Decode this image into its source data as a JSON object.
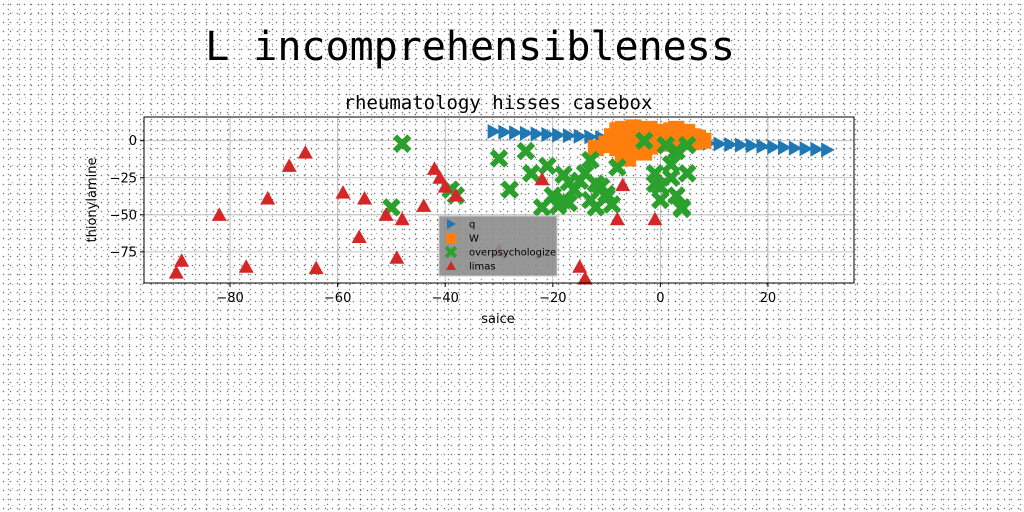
{
  "figure_title": "L incomprehensibleness",
  "chart_data": {
    "type": "scatter",
    "title": "rheumatology hisses casebox",
    "xlabel": "saice",
    "ylabel": "thionylamine",
    "xlim": [
      -96,
      36
    ],
    "ylim": [
      -96,
      16
    ],
    "xticks": [
      -80,
      -60,
      -40,
      -20,
      0,
      20
    ],
    "yticks": [
      0,
      -25,
      -50,
      -75
    ],
    "grid": true,
    "legend_position": "lower-center",
    "series": [
      {
        "name": "q",
        "marker": "triangle-right",
        "color": "#1f77b4",
        "x": [
          -31,
          -29,
          -27,
          -25,
          -23,
          -21,
          -19,
          -17,
          -15,
          -13,
          -11,
          -9,
          -7,
          -5,
          -3,
          -1,
          1,
          3,
          5,
          7,
          9,
          11,
          13,
          15,
          17,
          19,
          21,
          23,
          25,
          27,
          29,
          31
        ],
        "y": [
          6.2,
          5.8,
          5.4,
          5.0,
          4.6,
          4.2,
          3.8,
          3.4,
          3.0,
          2.6,
          2.2,
          1.8,
          1.4,
          1.0,
          0.6,
          0.2,
          -0.2,
          -0.6,
          -1.0,
          -1.4,
          -1.8,
          -2.2,
          -2.6,
          -3.0,
          -3.4,
          -3.8,
          -4.2,
          -4.6,
          -5.0,
          -5.4,
          -5.8,
          -6.2
        ]
      },
      {
        "name": "W",
        "marker": "square",
        "color": "#ff7f0e",
        "x": [
          -12,
          -10,
          -9,
          -8,
          -7,
          -6,
          -5,
          -4,
          -3,
          -2,
          -1,
          0,
          1,
          2,
          3,
          4,
          5,
          6,
          7,
          8,
          -10,
          -8,
          -6,
          -4,
          -2,
          0,
          2,
          4,
          6,
          -7,
          -5,
          -3,
          -1,
          -6
        ],
        "y": [
          -5,
          -2,
          3,
          7,
          8,
          6,
          9,
          4,
          7,
          8,
          6,
          5,
          3,
          7,
          8,
          4,
          6,
          3,
          2,
          0,
          -3,
          -5,
          -2,
          1,
          -4,
          -2,
          0,
          3,
          -1,
          -10,
          -6,
          -8,
          -3,
          -12
        ]
      },
      {
        "name": "overpsychologize",
        "marker": "x",
        "color": "#2ca02c",
        "x": [
          -48,
          -38,
          -30,
          -28,
          -25,
          -24,
          -22,
          -21,
          -20,
          -19,
          -18,
          -17,
          -16,
          -15,
          -14,
          -13,
          -12,
          -11,
          -10,
          -9,
          -8,
          -50,
          -39,
          -18,
          -17,
          -13,
          -12,
          -10,
          -3,
          -1,
          0,
          1,
          2,
          3,
          4,
          5,
          -1,
          0,
          3,
          5,
          2,
          4
        ],
        "y": [
          -2,
          -37,
          -12,
          -33,
          -7,
          -22,
          -45,
          -17,
          -37,
          -44,
          -40,
          -28,
          -33,
          -27,
          -22,
          -13,
          -29,
          -31,
          -36,
          -43,
          -18,
          -45,
          -33,
          -23,
          -42,
          -40,
          -45,
          -38,
          0,
          -22,
          -31,
          -3,
          -16,
          -37,
          -45,
          -22,
          -29,
          -40,
          -7,
          -3,
          -25,
          -46
        ]
      },
      {
        "name": "limas",
        "marker": "triangle-up",
        "color": "#d62728",
        "x": [
          -90,
          -89,
          -82,
          -77,
          -73,
          -69,
          -66,
          -64,
          -59,
          -56,
          -55,
          -51,
          -49,
          -48,
          -44,
          -42,
          -41,
          -40,
          -38,
          -30,
          -22,
          -15,
          -14,
          -8,
          -7,
          -1
        ],
        "y": [
          -89,
          -81,
          -50,
          -85,
          -39,
          -17,
          -8,
          -86,
          -35,
          -65,
          -39,
          -50,
          -79,
          -53,
          -44,
          -19,
          -25,
          -31,
          -37,
          -74,
          -26,
          -85,
          -93,
          -53,
          -30,
          -53
        ]
      }
    ]
  }
}
